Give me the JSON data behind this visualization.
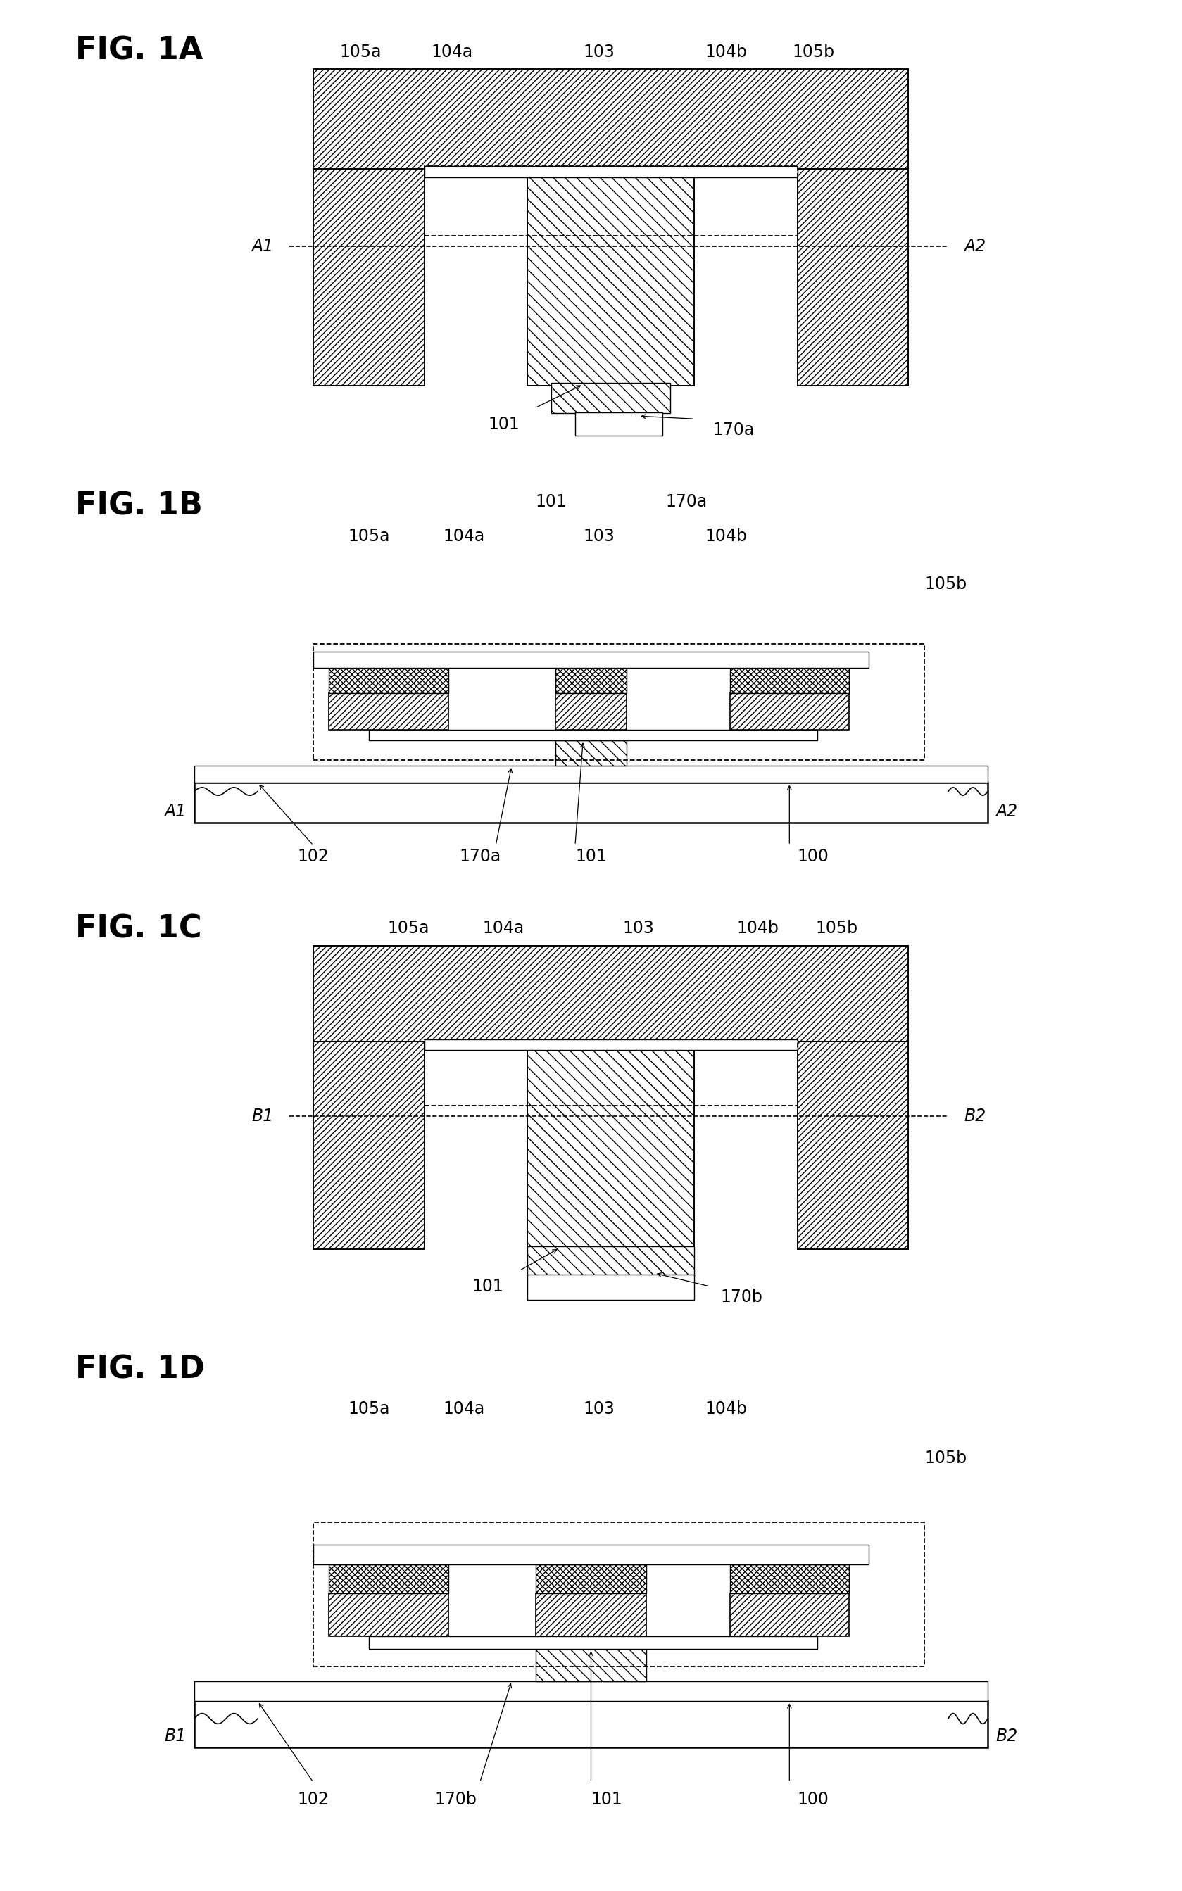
{
  "background_color": "#ffffff",
  "fig_titles": [
    "FIG. 1A",
    "FIG. 1B",
    "FIG. 1C",
    "FIG. 1D"
  ],
  "font_size_title": 32,
  "font_size_label": 17,
  "hatch_dense": "////",
  "hatch_light": "\\\\",
  "hatch_cross": "xxxx"
}
